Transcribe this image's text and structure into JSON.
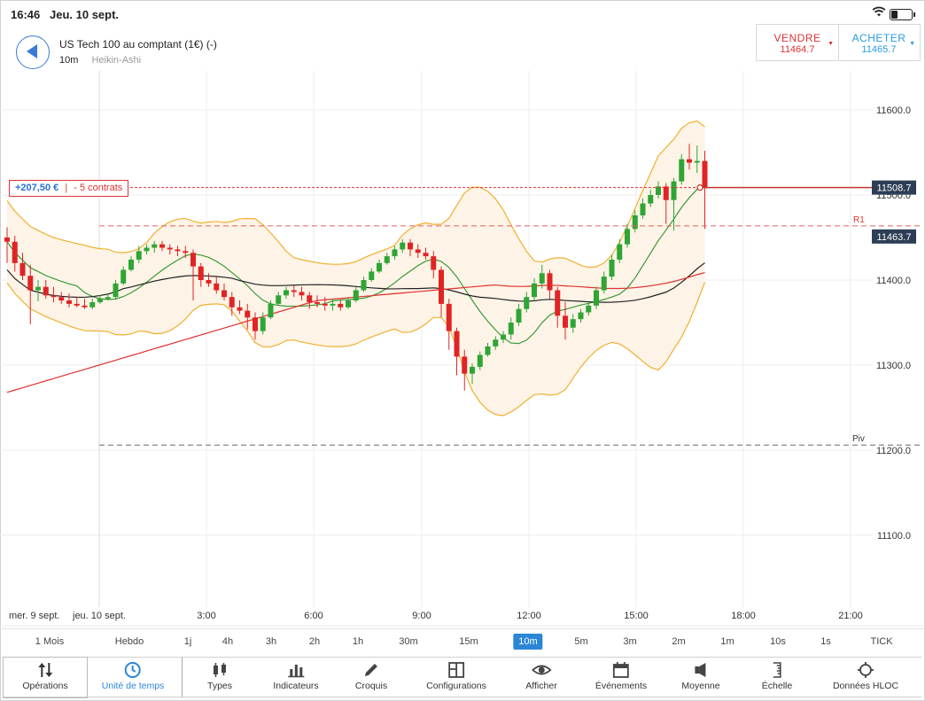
{
  "status": {
    "time": "16:46",
    "date": "Jeu. 10 sept."
  },
  "header": {
    "instrument": "US Tech 100 au comptant (1€) (-)",
    "timeframe": "10m",
    "chart_type": "Heikin-Ashi"
  },
  "trade": {
    "sell_label": "VENDRE",
    "sell_price": "11464.7",
    "buy_label": "ACHETER",
    "buy_price": "11465.7"
  },
  "position": {
    "pnl": "+207,50 €",
    "qty": "- 5 contrats"
  },
  "chart_data": {
    "type": "candlestick",
    "y_ticks": [
      "11600.0",
      "11500.0",
      "11400.0",
      "11300.0",
      "11200.0",
      "11100.0"
    ],
    "x_ticks": [
      "mer. 9 sept.",
      "jeu. 10 sept.",
      "3:00",
      "6:00",
      "9:00",
      "12:00",
      "15:00",
      "18:00",
      "21:00"
    ],
    "ylim": [
      11100,
      11600
    ],
    "price_labels": {
      "position": "11508.7",
      "r1": "11463.7"
    },
    "levels": {
      "r1_label": "R1",
      "piv_label": "Piv",
      "r1": 11463.7,
      "piv": 11206,
      "position": 11508.7
    },
    "colors": {
      "up": "#2fa535",
      "down": "#e02424",
      "bollinger": "#f0b030",
      "ma_green": "#3a9a3a",
      "ma_black": "#222222",
      "ma_red": "#e03030"
    },
    "candles": [
      {
        "o": 11450,
        "h": 11462,
        "l": 11420,
        "c": 11445
      },
      {
        "o": 11445,
        "h": 11452,
        "l": 11410,
        "c": 11420
      },
      {
        "o": 11420,
        "h": 11432,
        "l": 11400,
        "c": 11405
      },
      {
        "o": 11405,
        "h": 11418,
        "l": 11348,
        "c": 11388
      },
      {
        "o": 11388,
        "h": 11400,
        "l": 11375,
        "c": 11392
      },
      {
        "o": 11392,
        "h": 11400,
        "l": 11378,
        "c": 11382
      },
      {
        "o": 11382,
        "h": 11392,
        "l": 11374,
        "c": 11380
      },
      {
        "o": 11380,
        "h": 11386,
        "l": 11372,
        "c": 11376
      },
      {
        "o": 11376,
        "h": 11384,
        "l": 11368,
        "c": 11372
      },
      {
        "o": 11372,
        "h": 11380,
        "l": 11368,
        "c": 11370
      },
      {
        "o": 11370,
        "h": 11378,
        "l": 11366,
        "c": 11368
      },
      {
        "o": 11368,
        "h": 11378,
        "l": 11366,
        "c": 11374
      },
      {
        "o": 11374,
        "h": 11382,
        "l": 11372,
        "c": 11378
      },
      {
        "o": 11378,
        "h": 11384,
        "l": 11376,
        "c": 11380
      },
      {
        "o": 11380,
        "h": 11400,
        "l": 11378,
        "c": 11396
      },
      {
        "o": 11396,
        "h": 11416,
        "l": 11394,
        "c": 11412
      },
      {
        "o": 11412,
        "h": 11428,
        "l": 11410,
        "c": 11424
      },
      {
        "o": 11424,
        "h": 11440,
        "l": 11420,
        "c": 11434
      },
      {
        "o": 11434,
        "h": 11442,
        "l": 11430,
        "c": 11438
      },
      {
        "o": 11438,
        "h": 11446,
        "l": 11432,
        "c": 11442
      },
      {
        "o": 11442,
        "h": 11446,
        "l": 11434,
        "c": 11438
      },
      {
        "o": 11438,
        "h": 11442,
        "l": 11430,
        "c": 11436
      },
      {
        "o": 11436,
        "h": 11440,
        "l": 11428,
        "c": 11434
      },
      {
        "o": 11434,
        "h": 11440,
        "l": 11426,
        "c": 11432
      },
      {
        "o": 11432,
        "h": 11436,
        "l": 11376,
        "c": 11416
      },
      {
        "o": 11416,
        "h": 11420,
        "l": 11392,
        "c": 11400
      },
      {
        "o": 11400,
        "h": 11408,
        "l": 11392,
        "c": 11396
      },
      {
        "o": 11396,
        "h": 11404,
        "l": 11384,
        "c": 11388
      },
      {
        "o": 11388,
        "h": 11396,
        "l": 11376,
        "c": 11380
      },
      {
        "o": 11380,
        "h": 11386,
        "l": 11358,
        "c": 11368
      },
      {
        "o": 11368,
        "h": 11376,
        "l": 11360,
        "c": 11364
      },
      {
        "o": 11364,
        "h": 11372,
        "l": 11342,
        "c": 11356
      },
      {
        "o": 11356,
        "h": 11362,
        "l": 11330,
        "c": 11340
      },
      {
        "o": 11340,
        "h": 11362,
        "l": 11336,
        "c": 11356
      },
      {
        "o": 11356,
        "h": 11376,
        "l": 11354,
        "c": 11372
      },
      {
        "o": 11372,
        "h": 11386,
        "l": 11370,
        "c": 11382
      },
      {
        "o": 11382,
        "h": 11392,
        "l": 11378,
        "c": 11388
      },
      {
        "o": 11388,
        "h": 11394,
        "l": 11380,
        "c": 11386
      },
      {
        "o": 11386,
        "h": 11392,
        "l": 11376,
        "c": 11382
      },
      {
        "o": 11382,
        "h": 11386,
        "l": 11366,
        "c": 11374
      },
      {
        "o": 11374,
        "h": 11382,
        "l": 11368,
        "c": 11372
      },
      {
        "o": 11372,
        "h": 11380,
        "l": 11364,
        "c": 11370
      },
      {
        "o": 11370,
        "h": 11378,
        "l": 11364,
        "c": 11372
      },
      {
        "o": 11372,
        "h": 11376,
        "l": 11364,
        "c": 11368
      },
      {
        "o": 11368,
        "h": 11380,
        "l": 11366,
        "c": 11376
      },
      {
        "o": 11376,
        "h": 11392,
        "l": 11374,
        "c": 11388
      },
      {
        "o": 11388,
        "h": 11404,
        "l": 11386,
        "c": 11400
      },
      {
        "o": 11400,
        "h": 11414,
        "l": 11398,
        "c": 11410
      },
      {
        "o": 11410,
        "h": 11424,
        "l": 11408,
        "c": 11420
      },
      {
        "o": 11420,
        "h": 11432,
        "l": 11418,
        "c": 11428
      },
      {
        "o": 11428,
        "h": 11440,
        "l": 11424,
        "c": 11436
      },
      {
        "o": 11436,
        "h": 11448,
        "l": 11432,
        "c": 11444
      },
      {
        "o": 11444,
        "h": 11448,
        "l": 11428,
        "c": 11436
      },
      {
        "o": 11436,
        "h": 11442,
        "l": 11426,
        "c": 11432
      },
      {
        "o": 11432,
        "h": 11438,
        "l": 11424,
        "c": 11428
      },
      {
        "o": 11428,
        "h": 11434,
        "l": 11402,
        "c": 11412
      },
      {
        "o": 11412,
        "h": 11416,
        "l": 11356,
        "c": 11372
      },
      {
        "o": 11372,
        "h": 11378,
        "l": 11318,
        "c": 11340
      },
      {
        "o": 11340,
        "h": 11344,
        "l": 11288,
        "c": 11310
      },
      {
        "o": 11310,
        "h": 11318,
        "l": 11270,
        "c": 11290
      },
      {
        "o": 11290,
        "h": 11302,
        "l": 11278,
        "c": 11298
      },
      {
        "o": 11298,
        "h": 11316,
        "l": 11294,
        "c": 11312
      },
      {
        "o": 11312,
        "h": 11326,
        "l": 11310,
        "c": 11322
      },
      {
        "o": 11322,
        "h": 11334,
        "l": 11318,
        "c": 11330
      },
      {
        "o": 11330,
        "h": 11340,
        "l": 11326,
        "c": 11336
      },
      {
        "o": 11336,
        "h": 11356,
        "l": 11330,
        "c": 11350
      },
      {
        "o": 11350,
        "h": 11372,
        "l": 11346,
        "c": 11366
      },
      {
        "o": 11366,
        "h": 11386,
        "l": 11362,
        "c": 11380
      },
      {
        "o": 11380,
        "h": 11402,
        "l": 11376,
        "c": 11396
      },
      {
        "o": 11396,
        "h": 11418,
        "l": 11390,
        "c": 11408
      },
      {
        "o": 11408,
        "h": 11412,
        "l": 11378,
        "c": 11388
      },
      {
        "o": 11388,
        "h": 11392,
        "l": 11344,
        "c": 11358
      },
      {
        "o": 11358,
        "h": 11374,
        "l": 11330,
        "c": 11344
      },
      {
        "o": 11344,
        "h": 11360,
        "l": 11338,
        "c": 11354
      },
      {
        "o": 11354,
        "h": 11366,
        "l": 11350,
        "c": 11362
      },
      {
        "o": 11362,
        "h": 11374,
        "l": 11358,
        "c": 11370
      },
      {
        "o": 11370,
        "h": 11392,
        "l": 11366,
        "c": 11388
      },
      {
        "o": 11388,
        "h": 11410,
        "l": 11384,
        "c": 11404
      },
      {
        "o": 11404,
        "h": 11430,
        "l": 11400,
        "c": 11424
      },
      {
        "o": 11424,
        "h": 11448,
        "l": 11420,
        "c": 11442
      },
      {
        "o": 11442,
        "h": 11466,
        "l": 11438,
        "c": 11460
      },
      {
        "o": 11460,
        "h": 11482,
        "l": 11456,
        "c": 11476
      },
      {
        "o": 11476,
        "h": 11496,
        "l": 11472,
        "c": 11490
      },
      {
        "o": 11490,
        "h": 11506,
        "l": 11486,
        "c": 11500
      },
      {
        "o": 11500,
        "h": 11516,
        "l": 11496,
        "c": 11510
      },
      {
        "o": 11510,
        "h": 11514,
        "l": 11466,
        "c": 11494
      },
      {
        "o": 11494,
        "h": 11520,
        "l": 11458,
        "c": 11516
      },
      {
        "o": 11516,
        "h": 11548,
        "l": 11512,
        "c": 11542
      },
      {
        "o": 11542,
        "h": 11560,
        "l": 11530,
        "c": 11538
      },
      {
        "o": 11538,
        "h": 11558,
        "l": 11526,
        "c": 11540
      },
      {
        "o": 11540,
        "h": 11552,
        "l": 11460,
        "c": 11508
      }
    ]
  },
  "timeframes": [
    "1 Mois",
    "Hebdo",
    "1j",
    "4h",
    "3h",
    "2h",
    "1h",
    "30m",
    "15m",
    "10m",
    "5m",
    "3m",
    "2m",
    "1m",
    "10s",
    "1s",
    "TICK"
  ],
  "active_timeframe": "10m",
  "toolbar": [
    {
      "label": "Opérations",
      "icon": "sort-arrows-icon"
    },
    {
      "label": "Unité de temps",
      "icon": "clock-icon"
    },
    {
      "label": "Types",
      "icon": "candles-icon"
    },
    {
      "label": "Indicateurs",
      "icon": "bar-chart-icon"
    },
    {
      "label": "Croquis",
      "icon": "pencil-icon"
    },
    {
      "label": "Configurations",
      "icon": "layout-icon"
    },
    {
      "label": "Afficher",
      "icon": "eye-icon"
    },
    {
      "label": "Événements",
      "icon": "calendar-icon"
    },
    {
      "label": "Moyenne",
      "icon": "speaker-icon"
    },
    {
      "label": "Échelle",
      "icon": "scale-icon"
    },
    {
      "label": "Données HLOC",
      "icon": "crosshair-icon"
    }
  ]
}
